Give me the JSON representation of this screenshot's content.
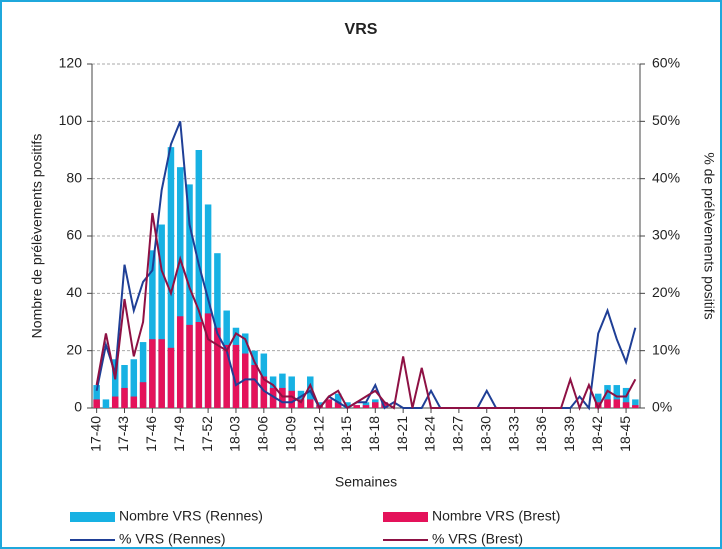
{
  "chart_data": {
    "type": "combo",
    "title": "VRS",
    "title_color": "#1fa8dc",
    "x_label": "Semaines",
    "y_label": "Nombre de prélèvements positifs",
    "y2_label": "% de prélèvements positifs",
    "categories": [
      "17-40",
      null,
      null,
      "17-43",
      null,
      null,
      "17-46",
      null,
      null,
      "17-49",
      null,
      null,
      "17-52",
      null,
      null,
      "18-03",
      null,
      null,
      "18-06",
      null,
      null,
      "18-09",
      null,
      null,
      "18-12",
      null,
      null,
      "18-15",
      null,
      null,
      "18-18",
      null,
      null,
      "18-21",
      null,
      null,
      "18-24",
      null,
      null,
      "18-27",
      null,
      null,
      "18-30",
      null,
      null,
      "18-33",
      null,
      null,
      "18-36",
      null,
      null,
      "18-39",
      null,
      null,
      "18-42",
      null,
      null,
      "18-45",
      null
    ],
    "ylim": [
      0,
      120
    ],
    "yticks": [
      0,
      20,
      40,
      60,
      80,
      100,
      120
    ],
    "y2lim": [
      0,
      60
    ],
    "y2ticks": [
      {
        "value": 0,
        "label": "0%"
      },
      {
        "value": 10,
        "label": "10%"
      },
      {
        "value": 20,
        "label": "20%"
      },
      {
        "value": 30,
        "label": "30%"
      },
      {
        "value": 40,
        "label": "40%"
      },
      {
        "value": 50,
        "label": "50%"
      },
      {
        "value": 60,
        "label": "60%"
      }
    ],
    "grid": true,
    "series": [
      {
        "name": "Nombre VRS (Rennes)",
        "type": "bar",
        "color": "#17b1e3",
        "values": [
          8,
          3,
          17,
          15,
          17,
          23,
          55,
          64,
          91,
          84,
          78,
          90,
          71,
          54,
          34,
          28,
          26,
          20,
          19,
          11,
          12,
          11,
          6,
          11,
          2,
          3,
          5,
          2,
          1,
          2,
          3,
          2,
          0,
          0,
          0,
          0,
          0,
          0,
          0,
          0,
          0,
          0,
          0,
          0,
          0,
          0,
          0,
          0,
          0,
          0,
          0,
          0,
          0,
          0,
          5,
          8,
          8,
          7,
          3
        ]
      },
      {
        "name": "Nombre VRS (Brest)",
        "type": "bar",
        "color": "#e4125a",
        "values": [
          3,
          0,
          4,
          7,
          4,
          9,
          24,
          24,
          21,
          32,
          29,
          30,
          33,
          28,
          22,
          22,
          19,
          15,
          11,
          7,
          7,
          6,
          3,
          3,
          1,
          3,
          2,
          0,
          1,
          1,
          2,
          2,
          0,
          0,
          0,
          0,
          0,
          0,
          0,
          0,
          0,
          0,
          0,
          0,
          0,
          0,
          0,
          0,
          0,
          0,
          0,
          0,
          0,
          0,
          2,
          3,
          3,
          2,
          1
        ]
      },
      {
        "name": "% VRS (Rennes)",
        "type": "line",
        "axis": "y2",
        "color": "#1f3f96",
        "values": [
          3,
          11,
          6,
          25,
          17,
          22,
          24,
          38,
          46,
          50,
          32,
          25,
          19,
          13,
          10,
          4,
          5,
          5,
          3,
          2,
          1,
          1,
          2,
          3,
          0,
          2,
          1,
          0,
          1,
          1,
          4,
          0,
          1,
          0,
          0,
          0,
          3,
          0,
          0,
          0,
          0,
          0,
          3,
          0,
          0,
          0,
          0,
          0,
          0,
          0,
          0,
          0,
          2,
          0,
          13,
          17,
          12,
          8,
          14
        ]
      },
      {
        "name": "% VRS (Brest)",
        "type": "line",
        "axis": "y2",
        "color": "#8e1144",
        "values": [
          4,
          13,
          5,
          19,
          9,
          15,
          34,
          24,
          20,
          26,
          21,
          17,
          12,
          11,
          10,
          13,
          12,
          8,
          5,
          4,
          2,
          2,
          1,
          4,
          0,
          2,
          3,
          0,
          1,
          2,
          3,
          1,
          0,
          9,
          0,
          7,
          0,
          0,
          0,
          0,
          0,
          0,
          0,
          0,
          0,
          0,
          0,
          0,
          0,
          0,
          0,
          5,
          0,
          4,
          0,
          3,
          2,
          2,
          5
        ]
      }
    ]
  }
}
